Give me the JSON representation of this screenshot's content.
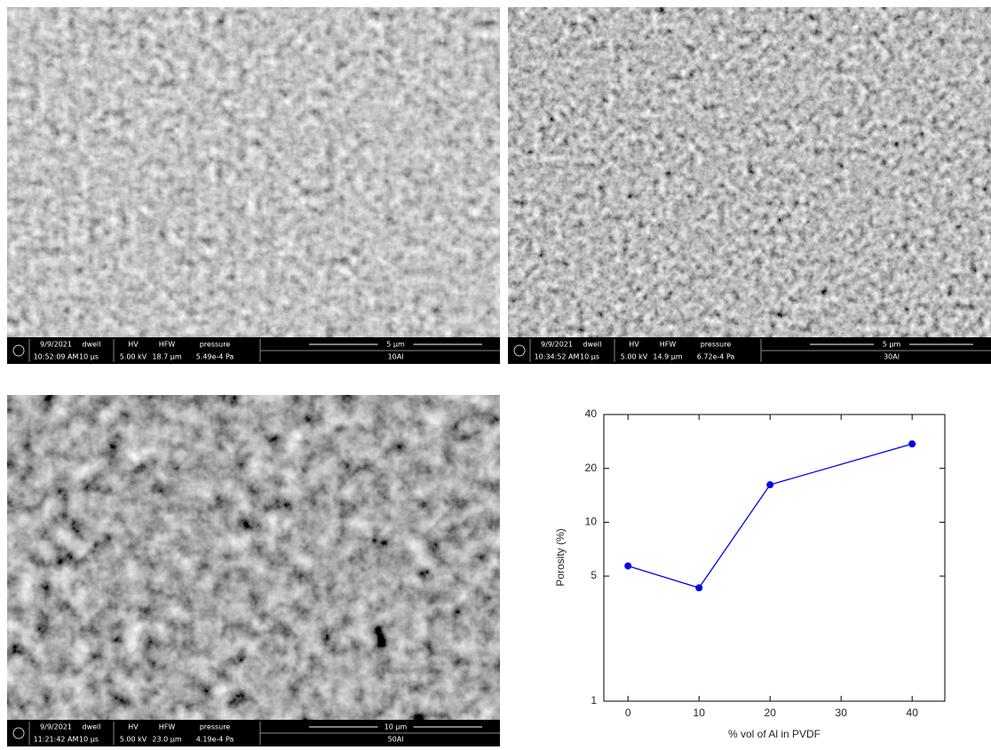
{
  "panels": [
    {
      "date": "9/9/2021",
      "time": "10:52:09 AM",
      "dwell_label": "dwell",
      "dwell": "10 μs",
      "hv_label": "HV",
      "hv": "5.00 kV",
      "hfw_label": "HFW",
      "hfw": "18.7 μm",
      "pressure_label": "pressure",
      "pressure": "5.49e-4 Pa",
      "scale": "5 μm",
      "sample": "10Al"
    },
    {
      "date": "9/9/2021",
      "time": "10:34:52 AM",
      "dwell_label": "dwell",
      "dwell": "10 μs",
      "hv_label": "HV",
      "hv": "5.00 kV",
      "hfw_label": "HFW",
      "hfw": "14.9 μm",
      "pressure_label": "pressure",
      "pressure": "6.72e-4 Pa",
      "scale": "5 μm",
      "sample": "30Al"
    },
    {
      "date": "9/9/2021",
      "time": "11:21:42 AM",
      "dwell_label": "dwell",
      "dwell": "10 μs",
      "hv_label": "HV",
      "hv": "5.00 kV",
      "hfw_label": "HFW",
      "hfw": "23.0 μm",
      "pressure_label": "pressure",
      "pressure": "4.19e-4 Pa",
      "scale": "10 μm",
      "sample": "50Al"
    }
  ],
  "chart_data": {
    "type": "line",
    "x_label": "% vol of Al in PVDF",
    "y_label": "Porosity (%)",
    "x": [
      0,
      10,
      20,
      40
    ],
    "series": [
      {
        "name": null,
        "color": "#0000ee",
        "values": [
          5.7,
          4.3,
          16.2,
          27.4
        ]
      }
    ],
    "xlim": [
      -3.4,
      44.6
    ],
    "xticks": [
      0,
      10,
      20,
      30,
      40
    ],
    "ylim": [
      1,
      40
    ],
    "yticks": [
      1,
      5,
      10,
      20,
      40
    ],
    "ylog": true
  }
}
